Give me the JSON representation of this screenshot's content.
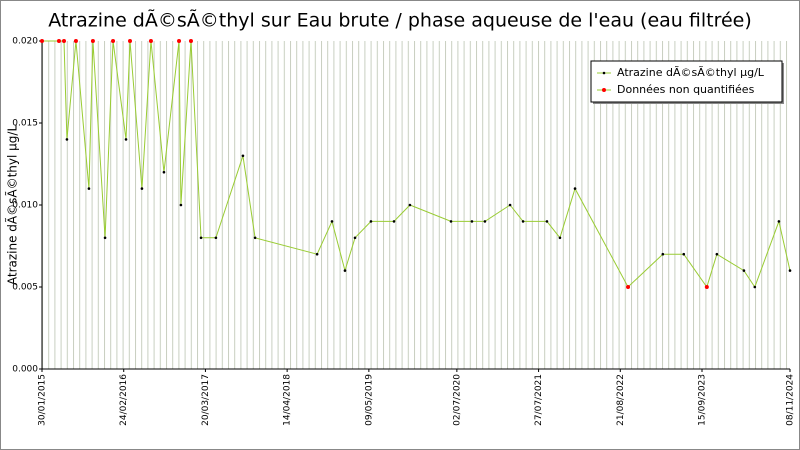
{
  "chart_data": {
    "type": "line",
    "title": "Atrazine dÃ©sÃ©thyl sur Eau brute / phase aqueuse de l'eau (eau filtrée)",
    "y_label": "Atrazine dÃ©sÃ©thyl µg/L",
    "x": [
      "30/01/2015",
      "21/04/2015",
      "15/05/2015",
      "29/05/2015",
      "11/07/2015",
      "11/09/2015",
      "30/09/2015",
      "27/11/2015",
      "04/01/2016",
      "06/03/2016",
      "25/03/2016",
      "21/05/2016",
      "03/07/2016",
      "03/09/2016",
      "14/11/2016",
      "23/11/2016",
      "10/01/2017",
      "27/02/2017",
      "09/05/2017",
      "15/09/2017",
      "12/11/2017",
      "04/09/2018",
      "14/11/2018",
      "15/01/2019",
      "04/03/2019",
      "19/05/2019",
      "06/09/2019",
      "21/11/2019",
      "04/06/2020",
      "12/09/2020",
      "13/11/2020",
      "13/03/2021",
      "14/05/2021",
      "05/09/2021",
      "06/11/2021",
      "17/01/2022",
      "27/09/2022",
      "12/03/2023",
      "20/06/2023",
      "08/10/2023",
      "25/11/2023",
      "02/04/2024",
      "24/05/2024",
      "16/09/2024",
      "08/11/2024"
    ],
    "series": [
      {
        "name": "Atrazine dÃ©sÃ©thyl µg/L",
        "color": "#000000",
        "values": [
          null,
          null,
          null,
          0.014,
          null,
          0.011,
          null,
          0.008,
          null,
          0.014,
          null,
          0.011,
          null,
          0.012,
          null,
          0.01,
          null,
          0.008,
          0.008,
          0.013,
          0.008,
          0.007,
          0.009,
          0.006,
          0.008,
          0.009,
          0.009,
          0.01,
          0.009,
          0.009,
          0.009,
          0.01,
          0.009,
          0.009,
          0.008,
          0.011,
          null,
          0.007,
          0.007,
          null,
          0.007,
          0.006,
          0.005,
          0.009,
          0.006
        ]
      },
      {
        "name": "Données non quantifiées",
        "color": "#ff0000",
        "values": [
          0.02,
          0.02,
          0.02,
          null,
          0.02,
          null,
          0.02,
          null,
          0.02,
          null,
          0.02,
          null,
          0.02,
          null,
          0.02,
          null,
          0.02,
          null,
          null,
          null,
          null,
          null,
          null,
          null,
          null,
          null,
          null,
          null,
          null,
          null,
          null,
          null,
          null,
          null,
          null,
          null,
          0.005,
          null,
          null,
          0.005,
          null,
          null,
          null,
          null,
          null
        ]
      }
    ],
    "line_color": "#99cc33",
    "xlim": [
      "30/01/2015",
      "08/11/2024"
    ],
    "xticks": [
      "30/01/2015",
      "24/02/2016",
      "20/03/2017",
      "14/04/2018",
      "09/05/2019",
      "02/07/2020",
      "27/07/2021",
      "21/08/2022",
      "15/09/2023",
      "08/11/2024"
    ],
    "ylim": [
      0,
      0.02
    ],
    "yticks": [
      {
        "value": 0,
        "label": "0.000"
      },
      {
        "value": 0.005,
        "label": "0.005"
      },
      {
        "value": 0.01,
        "label": "0.010"
      },
      {
        "value": 0.015,
        "label": "0.015"
      },
      {
        "value": 0.02,
        "label": "0.020"
      }
    ],
    "grid": true,
    "legend": "top-right"
  }
}
